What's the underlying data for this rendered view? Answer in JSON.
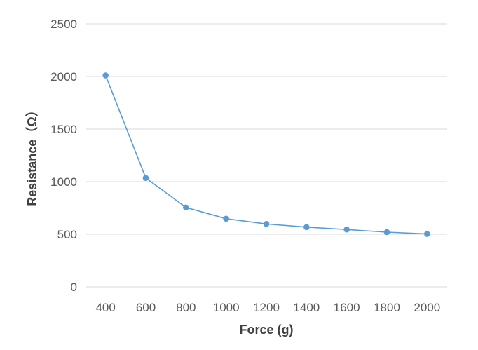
{
  "chart_data": {
    "type": "line",
    "title": "",
    "xlabel": "Force (g)",
    "ylabel": "Resistance（Ω）",
    "categories": [
      "400",
      "600",
      "800",
      "1000",
      "1200",
      "1400",
      "1600",
      "1800",
      "2000"
    ],
    "series": [
      {
        "values": [
          2010,
          1035,
          755,
          648,
          598,
          568,
          545,
          520,
          503
        ]
      }
    ],
    "ylim": [
      0,
      2500
    ],
    "yticks": [
      "0",
      "500",
      "1000",
      "1500",
      "2000",
      "2500"
    ],
    "grid": true,
    "legend": "none",
    "colors": {
      "line": "#5b9bd5",
      "marker": "#5b9bd5",
      "grid": "#d9d9d9",
      "tick_text": "#595959",
      "axis_title": "#404040"
    }
  }
}
